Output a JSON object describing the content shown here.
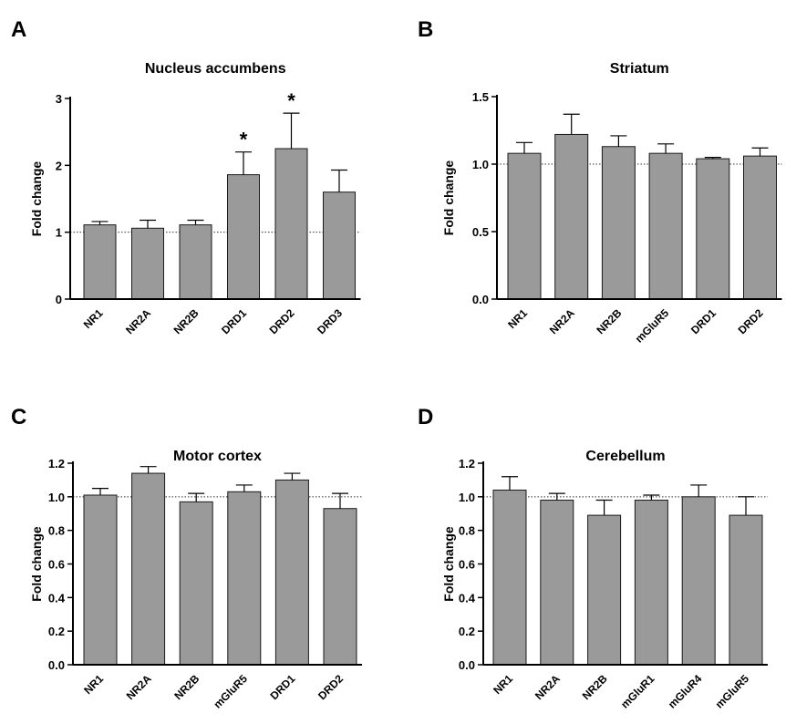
{
  "chart_data": [
    {
      "panel_letter": "A",
      "type": "bar",
      "title": "Nucleus accumbens",
      "ylabel": "Fold change",
      "ylim": [
        0,
        3
      ],
      "yticks": [
        0,
        1,
        2,
        3
      ],
      "ytick_labels": [
        "0",
        "1",
        "2",
        "3"
      ],
      "reference_line": 1,
      "categories": [
        "NR1",
        "NR2A",
        "NR2B",
        "DRD1",
        "DRD2",
        "DRD3"
      ],
      "values": [
        1.11,
        1.06,
        1.11,
        1.86,
        2.25,
        1.6
      ],
      "errors": [
        0.05,
        0.12,
        0.07,
        0.34,
        0.53,
        0.33
      ],
      "annotations": [
        {
          "category": "DRD1",
          "text": "*"
        },
        {
          "category": "DRD2",
          "text": "*"
        }
      ]
    },
    {
      "panel_letter": "B",
      "type": "bar",
      "title": "Striatum",
      "ylabel": "Fold change",
      "ylim": [
        0,
        1.5
      ],
      "yticks": [
        0,
        0.5,
        1,
        1.5
      ],
      "ytick_labels": [
        "0.0",
        "0.5",
        "1.0",
        "1.5"
      ],
      "reference_line": 1,
      "categories": [
        "NR1",
        "NR2A",
        "NR2B",
        "mGluR5",
        "DRD1",
        "DRD2"
      ],
      "values": [
        1.08,
        1.22,
        1.13,
        1.08,
        1.04,
        1.06
      ],
      "errors": [
        0.08,
        0.15,
        0.08,
        0.07,
        0.01,
        0.06
      ],
      "annotations": []
    },
    {
      "panel_letter": "C",
      "type": "bar",
      "title": "Motor cortex",
      "ylabel": "Fold change",
      "ylim": [
        0,
        1.2
      ],
      "yticks": [
        0,
        0.2,
        0.4,
        0.6,
        0.8,
        1,
        1.2
      ],
      "ytick_labels": [
        "0.0",
        "0.2",
        "0.4",
        "0.6",
        "0.8",
        "1.0",
        "1.2"
      ],
      "reference_line": 1,
      "categories": [
        "NR1",
        "NR2A",
        "NR2B",
        "mGluR5",
        "DRD1",
        "DRD2"
      ],
      "values": [
        1.01,
        1.14,
        0.97,
        1.03,
        1.1,
        0.93
      ],
      "errors": [
        0.04,
        0.04,
        0.05,
        0.04,
        0.04,
        0.09
      ],
      "annotations": []
    },
    {
      "panel_letter": "D",
      "type": "bar",
      "title": "Cerebellum",
      "ylabel": "Fold change",
      "ylim": [
        0,
        1.2
      ],
      "yticks": [
        0,
        0.2,
        0.4,
        0.6,
        0.8,
        1,
        1.2
      ],
      "ytick_labels": [
        "0.0",
        "0.2",
        "0.4",
        "0.6",
        "0.8",
        "1.0",
        "1.2"
      ],
      "reference_line": 1,
      "categories": [
        "NR1",
        "NR2A",
        "NR2B",
        "mGluR1",
        "mGluR4",
        "mGluR5"
      ],
      "values": [
        1.04,
        0.98,
        0.89,
        0.98,
        1.0,
        0.89
      ],
      "errors": [
        0.08,
        0.04,
        0.09,
        0.03,
        0.07,
        0.11
      ],
      "annotations": []
    }
  ],
  "colors": {
    "bar_fill": "#9a9a9a",
    "bar_stroke": "#1a1a1a",
    "axis": "#000000",
    "reference_line": "#333333"
  }
}
